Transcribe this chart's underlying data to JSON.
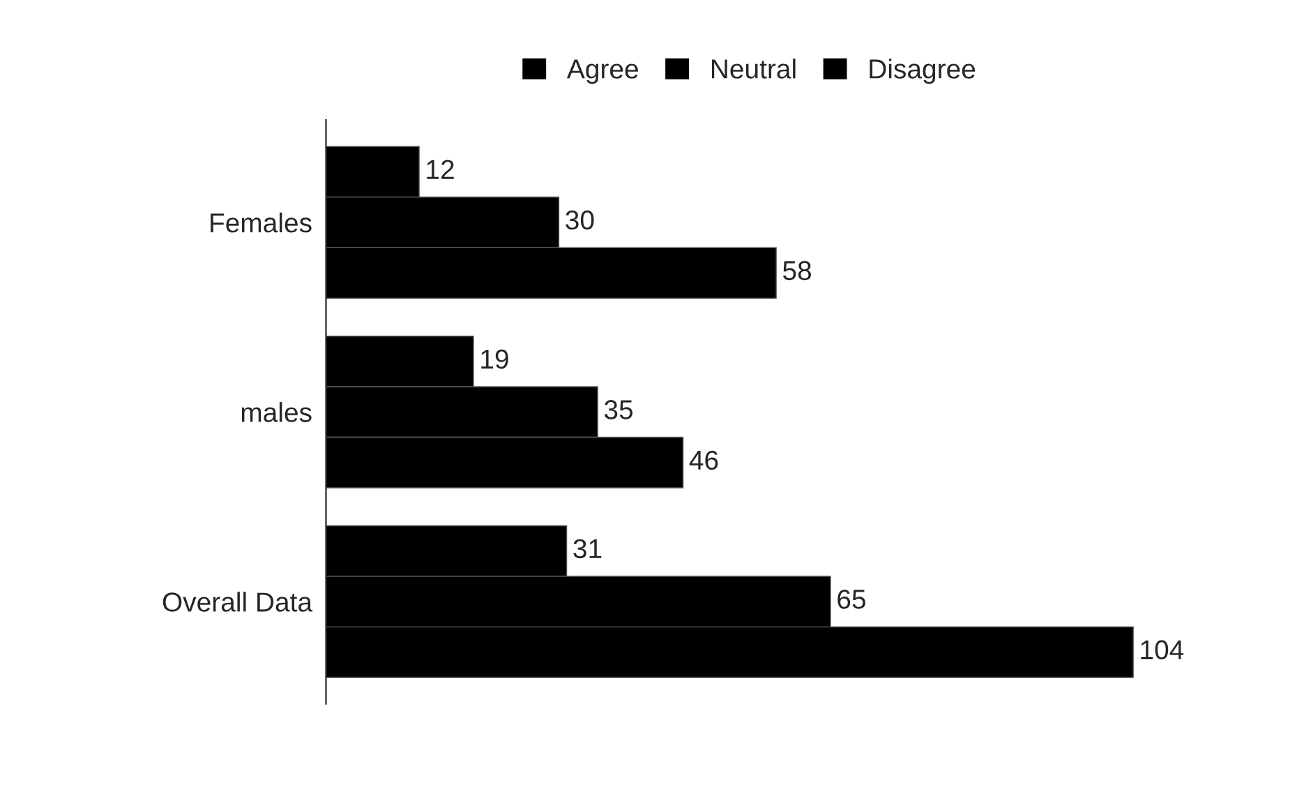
{
  "chart_data": {
    "type": "bar",
    "orientation": "horizontal",
    "categories": [
      "Females",
      "males",
      "Overall Data"
    ],
    "series": [
      {
        "name": "Agree",
        "color": "#000000",
        "values": [
          12,
          19,
          31
        ]
      },
      {
        "name": "Neutral",
        "color": "#000000",
        "values": [
          30,
          35,
          65
        ]
      },
      {
        "name": "Disagree",
        "color": "#000000",
        "values": [
          58,
          46,
          104
        ]
      }
    ],
    "data_labels": true,
    "legend": "top",
    "grid": false,
    "tick_labels": "y"
  }
}
